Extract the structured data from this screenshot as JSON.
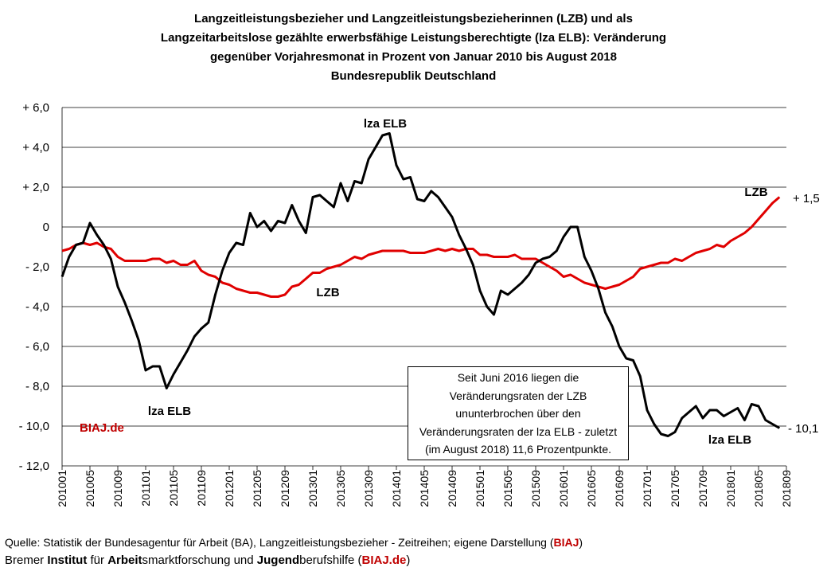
{
  "title_lines": [
    "Langzeitleistungsbezieher und Langzeitleistungsbezieherinnen (LZB) und als",
    "Langzeitarbeitslose gezählte erwerbsfähige Leistungsberechtigte (lza ELB): Veränderung",
    "gegenüber Vorjahresmonat in Prozent von Januar 2010 bis August 2018",
    "Bundesrepublik Deutschland"
  ],
  "annotations": {
    "lza_top": "lza ELB",
    "lza_left": "lza ELB",
    "lza_right": "lza ELB",
    "lzb_mid": "LZB",
    "lzb_right": "LZB",
    "end_lzb": "+ 1,5",
    "end_lza": "- 10,1",
    "watermark": "BIAJ.de"
  },
  "note_lines": [
    "Seit Juni 2016 liegen die",
    "Veränderungsraten der LZB",
    "ununterbrochen über den",
    "Veränderungsraten der lza ELB - zuletzt",
    "(im August 2018) 11,6 Prozentpunkte."
  ],
  "footer": {
    "source_prefix": "Quelle: Statistik der Bundesagentur für Arbeit (BA), Langzeitleistungsbezieher - Zeitreihen; eigene Darstellung (",
    "source_red": "BIAJ",
    "source_suffix": ")",
    "inst_1": "Bremer ",
    "inst_2": "Institut",
    "inst_3": " für ",
    "inst_4": "Arbeit",
    "inst_5": "smarktforschung und ",
    "inst_6": "Jugend",
    "inst_7": "berufshilfe (",
    "inst_red": "BIAJ.de",
    "inst_8": ")"
  },
  "colors": {
    "lza": "#000000",
    "lzb": "#e00000",
    "grid": "#000000",
    "accent": "#c00000"
  },
  "chart_data": {
    "type": "line",
    "ylim": [
      -12,
      6
    ],
    "yticks": [
      6,
      4,
      2,
      0,
      -2,
      -4,
      -6,
      -8,
      -10,
      -12
    ],
    "ytick_labels": [
      "+ 6,0",
      "+ 4,0",
      "+ 2,0",
      "0",
      "- 2,0",
      "- 4,0",
      "- 6,0",
      "- 8,0",
      "- 10,0",
      "- 12,0"
    ],
    "xtick_labels": [
      "201001",
      "201005",
      "201009",
      "201101",
      "201105",
      "201109",
      "201201",
      "201205",
      "201209",
      "201301",
      "201305",
      "201309",
      "201401",
      "201405",
      "201409",
      "201501",
      "201505",
      "201509",
      "201601",
      "201605",
      "201609",
      "201701",
      "201705",
      "201709",
      "201801",
      "201805",
      "201809"
    ],
    "x_start": "201001",
    "x_end": "201808",
    "grid": true,
    "series": [
      {
        "name": "lza ELB",
        "values": [
          -2.5,
          -1.5,
          -0.9,
          -0.8,
          0.2,
          -0.4,
          -0.9,
          -1.6,
          -3.0,
          -3.8,
          -4.7,
          -5.7,
          -7.2,
          -7.0,
          -7.0,
          -8.1,
          -7.4,
          -6.8,
          -6.2,
          -5.5,
          -5.1,
          -4.8,
          -3.4,
          -2.2,
          -1.3,
          -0.8,
          -0.9,
          0.7,
          0.0,
          0.3,
          -0.2,
          0.3,
          0.2,
          1.1,
          0.3,
          -0.3,
          1.5,
          1.6,
          1.3,
          1.0,
          2.2,
          1.3,
          2.3,
          2.2,
          3.4,
          4.0,
          4.6,
          4.7,
          3.1,
          2.4,
          2.5,
          1.4,
          1.3,
          1.8,
          1.5,
          1.0,
          0.5,
          -0.4,
          -1.1,
          -1.9,
          -3.2,
          -4.0,
          -4.4,
          -3.2,
          -3.4,
          -3.1,
          -2.8,
          -2.4,
          -1.8,
          -1.6,
          -1.5,
          -1.2,
          -0.5,
          0.0,
          0.0,
          -1.5,
          -2.2,
          -3.1,
          -4.3,
          -5.0,
          -6.0,
          -6.6,
          -6.7,
          -7.5,
          -9.2,
          -9.9,
          -10.4,
          -10.5,
          -10.3,
          -9.6,
          -9.3,
          -9.0,
          -9.6,
          -9.2,
          -9.2,
          -9.5,
          -9.3,
          -9.1,
          -9.7,
          -8.9,
          -9.0,
          -9.7,
          -9.9,
          -10.1
        ]
      },
      {
        "name": "LZB",
        "values": [
          -1.2,
          -1.1,
          -0.9,
          -0.8,
          -0.9,
          -0.8,
          -1.0,
          -1.1,
          -1.5,
          -1.7,
          -1.7,
          -1.7,
          -1.7,
          -1.6,
          -1.6,
          -1.8,
          -1.7,
          -1.9,
          -1.9,
          -1.7,
          -2.2,
          -2.4,
          -2.5,
          -2.8,
          -2.9,
          -3.1,
          -3.2,
          -3.3,
          -3.3,
          -3.4,
          -3.5,
          -3.5,
          -3.4,
          -3.0,
          -2.9,
          -2.6,
          -2.3,
          -2.3,
          -2.1,
          -2.0,
          -1.9,
          -1.7,
          -1.5,
          -1.6,
          -1.4,
          -1.3,
          -1.2,
          -1.2,
          -1.2,
          -1.2,
          -1.3,
          -1.3,
          -1.3,
          -1.2,
          -1.1,
          -1.2,
          -1.1,
          -1.2,
          -1.1,
          -1.1,
          -1.4,
          -1.4,
          -1.5,
          -1.5,
          -1.5,
          -1.4,
          -1.6,
          -1.6,
          -1.6,
          -1.8,
          -2.0,
          -2.2,
          -2.5,
          -2.4,
          -2.6,
          -2.8,
          -2.9,
          -3.0,
          -3.1,
          -3.0,
          -2.9,
          -2.7,
          -2.5,
          -2.1,
          -2.0,
          -1.9,
          -1.8,
          -1.8,
          -1.6,
          -1.7,
          -1.5,
          -1.3,
          -1.2,
          -1.1,
          -0.9,
          -1.0,
          -0.7,
          -0.5,
          -0.3,
          0.0,
          0.4,
          0.8,
          1.2,
          1.5
        ]
      }
    ]
  }
}
